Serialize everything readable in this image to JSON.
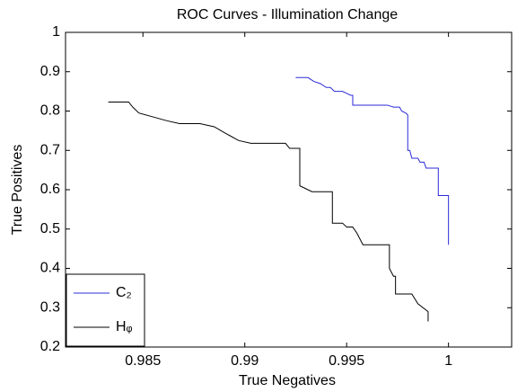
{
  "chart_data": {
    "type": "line",
    "title": "ROC Curves - Illumination Change",
    "xlabel": "True Negatives",
    "ylabel": "True Positives",
    "xlim": [
      0.9812,
      1.0031
    ],
    "xticks": [
      0.985,
      0.99,
      0.995,
      1
    ],
    "ylim": [
      0.2,
      1
    ],
    "yticks": [
      0.2,
      0.3,
      0.4,
      0.5,
      0.6,
      0.7,
      0.8,
      0.9,
      1
    ],
    "legend": "lower left",
    "series": [
      {
        "name": "C₂",
        "color": "#2b2bd9",
        "x": [
          0.9925,
          0.9931,
          0.9934,
          0.9937,
          0.994,
          0.9942,
          0.9944,
          0.9948,
          0.995,
          0.9952,
          0.9953,
          0.9953,
          0.997,
          0.9973,
          0.9976,
          0.9977,
          0.9979,
          0.998,
          0.998,
          0.9981,
          0.9982,
          0.9985,
          0.9986,
          0.9988,
          0.9989,
          0.9995,
          0.9995,
          1.0,
          1.0
        ],
        "values": [
          0.885,
          0.885,
          0.875,
          0.87,
          0.86,
          0.86,
          0.85,
          0.85,
          0.845,
          0.84,
          0.84,
          0.815,
          0.815,
          0.81,
          0.81,
          0.8,
          0.795,
          0.79,
          0.7,
          0.7,
          0.68,
          0.68,
          0.67,
          0.67,
          0.655,
          0.655,
          0.585,
          0.585,
          0.46
        ]
      },
      {
        "name": "Hᵩ",
        "color": "#000000",
        "x": [
          0.9833,
          0.9843,
          0.9845,
          0.9848,
          0.9855,
          0.9862,
          0.9868,
          0.9878,
          0.9885,
          0.989,
          0.9897,
          0.9903,
          0.992,
          0.9922,
          0.9927,
          0.9927,
          0.9933,
          0.9943,
          0.9943,
          0.9948,
          0.995,
          0.9953,
          0.9955,
          0.9958,
          0.9971,
          0.9971,
          0.9973,
          0.9974,
          0.9974,
          0.9982,
          0.9985,
          0.999,
          0.999
        ],
        "values": [
          0.823,
          0.823,
          0.81,
          0.795,
          0.785,
          0.775,
          0.768,
          0.768,
          0.76,
          0.745,
          0.725,
          0.718,
          0.718,
          0.705,
          0.705,
          0.61,
          0.595,
          0.595,
          0.515,
          0.515,
          0.505,
          0.505,
          0.49,
          0.46,
          0.46,
          0.4,
          0.38,
          0.38,
          0.335,
          0.335,
          0.31,
          0.29,
          0.265
        ]
      }
    ]
  }
}
